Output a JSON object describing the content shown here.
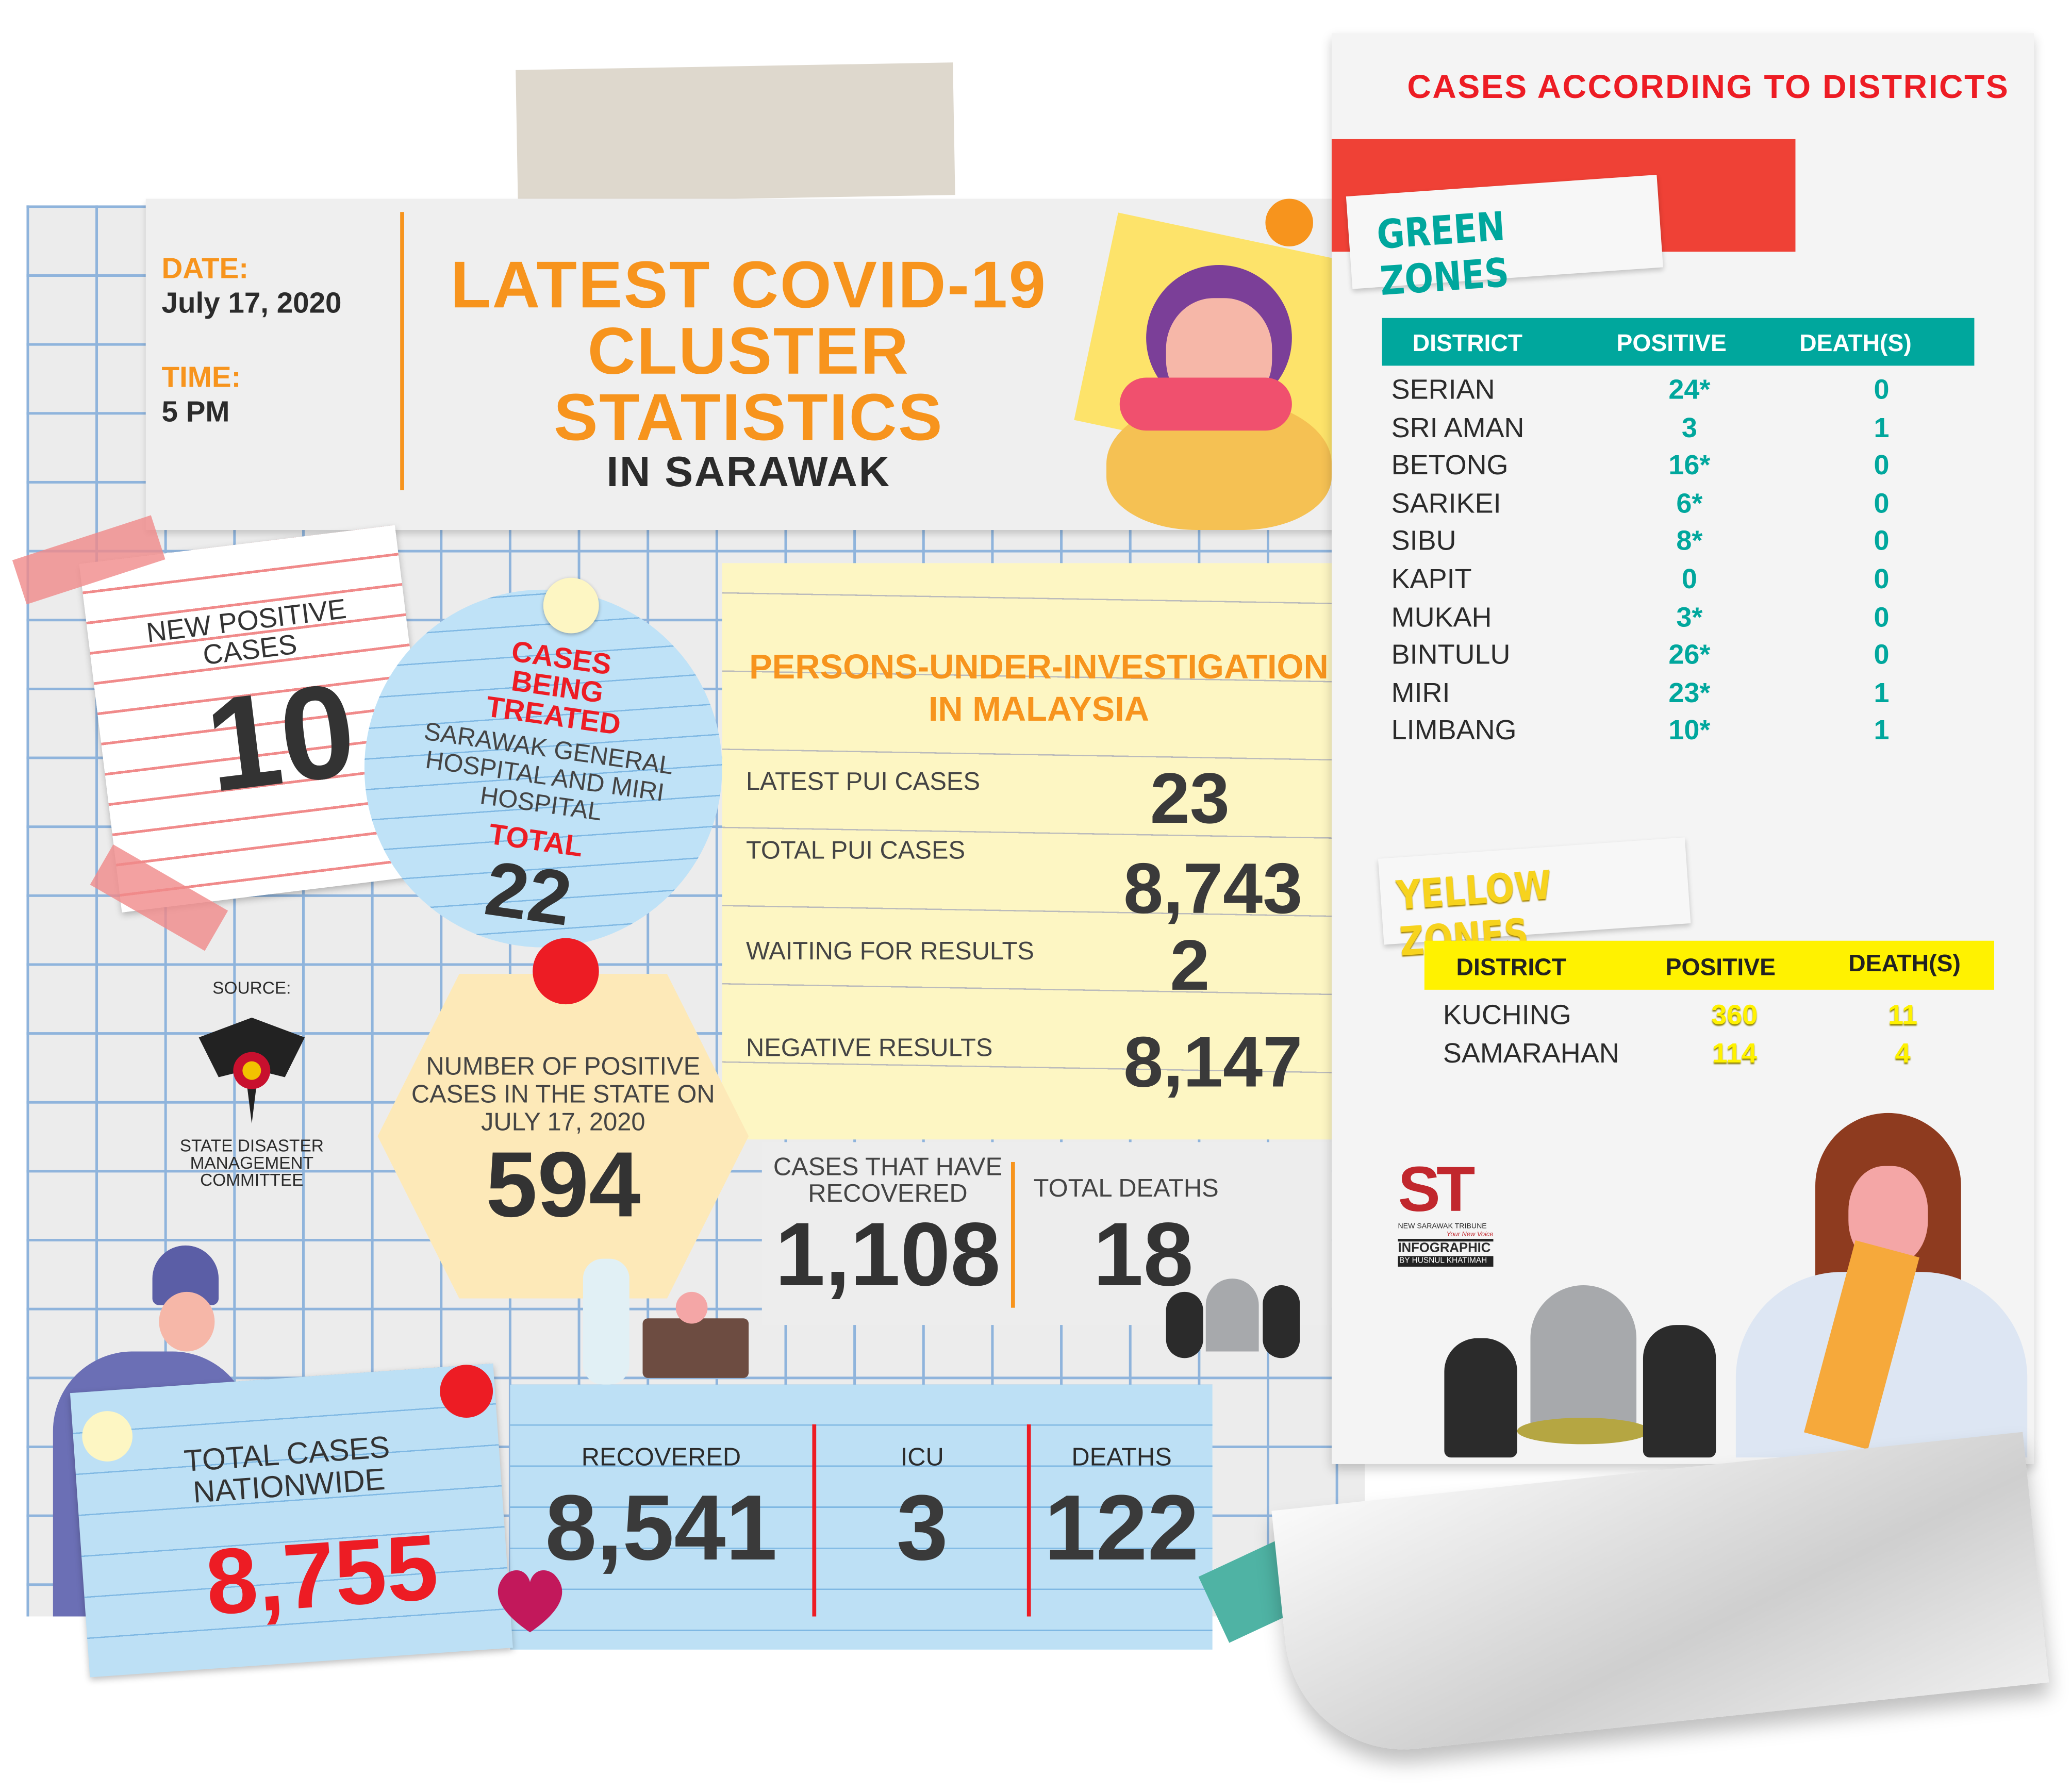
{
  "header": {
    "date_label": "DATE:",
    "date_value": "July 17, 2020",
    "time_label": "TIME:",
    "time_value": "5 PM",
    "title_lines": [
      "LATEST COVID-19",
      "CLUSTER",
      "STATISTICS"
    ],
    "subtitle": "IN SARAWAK"
  },
  "new_positive": {
    "label": "NEW POSITIVE CASES",
    "value": "10"
  },
  "being_treated": {
    "label": "CASES BEING TREATED",
    "hospitals": "SARAWAK GENERAL HOSPITAL AND MIRI HOSPITAL",
    "total_label": "TOTAL",
    "total_value": "22"
  },
  "pui": {
    "title_line1": "PERSONS-UNDER-INVESTIGATION",
    "title_line2": "IN MALAYSIA",
    "rows": [
      {
        "label": "LATEST PUI CASES",
        "value": "23"
      },
      {
        "label": "TOTAL PUI CASES",
        "value": "8,743"
      },
      {
        "label": "WAITING FOR RESULTS",
        "value": "2"
      },
      {
        "label": "NEGATIVE RESULTS",
        "value": "8,147"
      }
    ]
  },
  "state_positive": {
    "label": "NUMBER OF POSITIVE CASES IN THE STATE ON JULY 17, 2020",
    "value": "594"
  },
  "source": {
    "label": "SOURCE:",
    "org": "STATE DISASTER MANAGEMENT COMMITTEE"
  },
  "recovered_state": {
    "label": "CASES THAT HAVE RECOVERED",
    "value": "1,108"
  },
  "deaths_state": {
    "label": "TOTAL DEATHS",
    "value": "18"
  },
  "nationwide": {
    "label": "TOTAL CASES NATIONWIDE",
    "value": "8,755",
    "stats": [
      {
        "label": "RECOVERED",
        "value": "8,541"
      },
      {
        "label": "ICU",
        "value": "3"
      },
      {
        "label": "DEATHS",
        "value": "122"
      }
    ]
  },
  "districts": {
    "title": "CASES ACCORDING TO DISTRICTS",
    "green": {
      "label": "GREEN ZONES",
      "color": "#00a79d",
      "headers": [
        "DISTRICT",
        "POSITIVE",
        "DEATH(S)"
      ],
      "rows": [
        [
          "SERIAN",
          "24*",
          "0"
        ],
        [
          "SRI AMAN",
          "3",
          "1"
        ],
        [
          "BETONG",
          "16*",
          "0"
        ],
        [
          "SARIKEI",
          "6*",
          "0"
        ],
        [
          "SIBU",
          "8*",
          "0"
        ],
        [
          "KAPIT",
          "0",
          "0"
        ],
        [
          "MUKAH",
          "3*",
          "0"
        ],
        [
          "BINTULU",
          "26*",
          "0"
        ],
        [
          "MIRI",
          "23*",
          "1"
        ],
        [
          "LIMBANG",
          "10*",
          "1"
        ]
      ]
    },
    "yellow": {
      "label": "YELLOW ZONES",
      "color": "#fff200",
      "headers": [
        "DISTRICT",
        "POSITIVE",
        "DEATH(S)"
      ],
      "rows": [
        [
          "KUCHING",
          "360",
          "11"
        ],
        [
          "SAMARAHAN",
          "114",
          "4"
        ]
      ]
    }
  },
  "logo": {
    "mark": "ST",
    "name": "NEW SARAWAK TRIBUNE",
    "tagline": "Your New Voice",
    "label": "INFOGRAPHIC",
    "credit": "BY HUSNUL KHATIMAH"
  },
  "colors": {
    "orange": "#f7941d",
    "red": "#ed1c24",
    "teal": "#00a79d",
    "yellow": "#fff200",
    "blue": "#bde0f5"
  }
}
